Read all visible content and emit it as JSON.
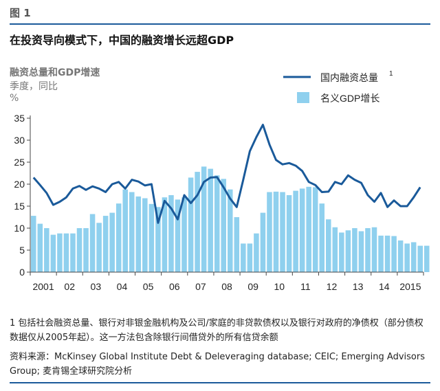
{
  "figure_label": "图 1",
  "title": "在投资导向模式下，中国的融资增长远超GDP",
  "subtitle_metric": "融资总量和GDP增速",
  "subtitle_freq": "季度，同比",
  "subtitle_unit": "%",
  "footnote": "1 包括社会融资总量、银行对非银金融机构及公司/家庭的非贷款债权以及银行对政府的净债权（部分债权数据仅从2005年起）。这一方法包含除银行间借贷外的所有信贷余额",
  "source": "资料来源：McKinsey Global Institute Debt & Deleveraging database; CEIC; Emerging Advisors Group; 麦肯锡全球研究院分析",
  "chart_data": {
    "type": "bar+line",
    "ylim": [
      0,
      35
    ],
    "yticks": [
      0,
      5,
      10,
      15,
      20,
      25,
      30,
      35
    ],
    "xtick_labels": [
      "2001",
      "02",
      "03",
      "04",
      "05",
      "06",
      "07",
      "08",
      "09",
      "10",
      "11",
      "12",
      "13",
      "14",
      "2015"
    ],
    "quarters_per_year": 4,
    "start_year": 2001,
    "grid": false,
    "legend_position": "top-right",
    "line_series": {
      "name": "国内融资总量",
      "name_superscript": "1",
      "color": "#1a5a9a",
      "values": [
        21.5,
        19.8,
        18.0,
        15.3,
        16.0,
        17.0,
        19.0,
        19.6,
        18.7,
        19.5,
        19.0,
        18.2,
        20.0,
        20.5,
        19.0,
        21.0,
        20.6,
        19.7,
        20.0,
        11.2,
        16.2,
        14.5,
        12.0,
        17.5,
        15.7,
        17.5,
        20.5,
        21.5,
        21.6,
        19.3,
        16.7,
        14.8,
        21.0,
        27.5,
        30.7,
        33.5,
        29.0,
        25.5,
        24.5,
        24.8,
        24.2,
        23.0,
        20.5,
        19.8,
        18.2,
        18.3,
        20.5,
        20.0,
        22.0,
        21.0,
        20.3,
        17.5,
        16.0,
        18.0,
        14.8,
        16.3,
        15.0,
        15.0,
        17.0,
        19.3
      ]
    },
    "bar_series": {
      "name": "名义GDP增长",
      "color": "#8fd0ee",
      "values": [
        12.8,
        11.0,
        10.0,
        8.5,
        8.8,
        8.8,
        8.8,
        10.0,
        10.0,
        13.2,
        11.2,
        12.8,
        13.5,
        15.6,
        18.8,
        18.2,
        17.2,
        16.8,
        15.5,
        14.8,
        17.0,
        17.5,
        16.5,
        17.0,
        21.5,
        22.8,
        24.0,
        23.5,
        22.0,
        21.2,
        18.8,
        12.5,
        6.5,
        6.5,
        8.8,
        13.5,
        18.2,
        18.3,
        18.2,
        17.5,
        18.5,
        19.0,
        19.4,
        19.3,
        15.6,
        12.0,
        10.2,
        9.0,
        9.5,
        10.0,
        9.3,
        10.0,
        10.2,
        8.3,
        8.3,
        8.2,
        7.2,
        6.5,
        6.8,
        6.0,
        6.0
      ]
    }
  }
}
